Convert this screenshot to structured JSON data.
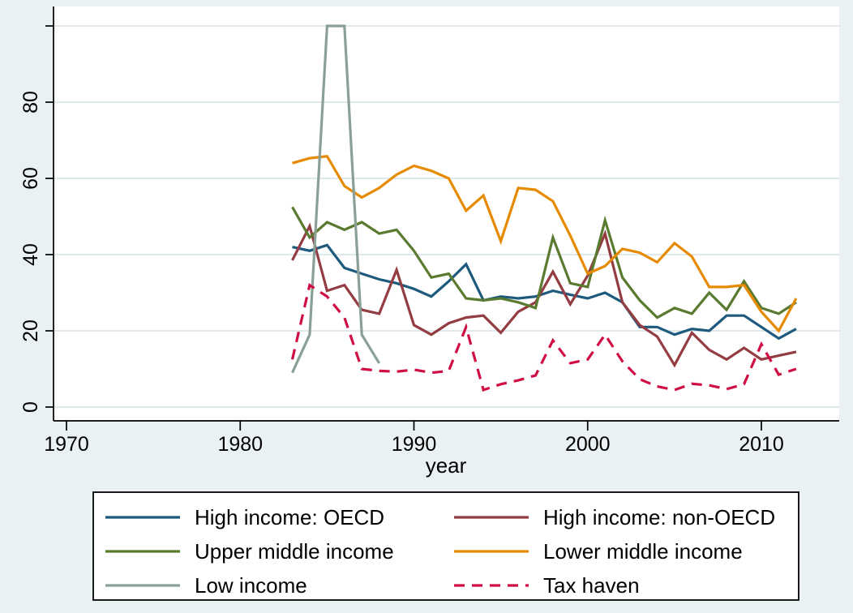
{
  "colors": {
    "background": "#e9f1f2",
    "plot_bg": "#ffffff",
    "gridline": "#dde9eb",
    "axis": "#000000",
    "text": "#000000",
    "legend_border": "#000000",
    "legend_bg": "#ffffff"
  },
  "chart_data": {
    "type": "line",
    "title": "",
    "xlabel": "year",
    "ylabel": "",
    "grid": true,
    "legend_position": "bottom",
    "xlim": [
      1969.3,
      2014.5
    ],
    "ylim": [
      0,
      100
    ],
    "x_ticks": [
      1970,
      1980,
      1990,
      2000,
      2010
    ],
    "y_ticks": [
      0,
      20,
      40,
      60,
      80
    ],
    "y_unlabeled_tick": 100,
    "x": [
      1983,
      1984,
      1985,
      1986,
      1987,
      1988,
      1989,
      1990,
      1991,
      1992,
      1993,
      1994,
      1995,
      1996,
      1997,
      1998,
      1999,
      2000,
      2001,
      2002,
      2003,
      2004,
      2005,
      2006,
      2007,
      2008,
      2009,
      2010,
      2011,
      2012
    ],
    "series": [
      {
        "name": "High income: OECD",
        "color": "#1e5a7d",
        "dash": null,
        "values": [
          42,
          41,
          42.5,
          36.5,
          35,
          33.5,
          32.5,
          31,
          29,
          33,
          37.5,
          28,
          29,
          28.5,
          29,
          30.5,
          29.5,
          28.5,
          30,
          27.5,
          21,
          21,
          19,
          20.5,
          20,
          24,
          24,
          21,
          18,
          20.5
        ]
      },
      {
        "name": "High income: non-OECD",
        "color": "#933c42",
        "dash": null,
        "values": [
          38.5,
          47.5,
          30.5,
          32,
          25.5,
          24.5,
          36,
          21.5,
          19,
          22,
          23.5,
          24,
          19.5,
          25,
          27.5,
          35.5,
          27,
          34.5,
          45.5,
          27.5,
          21.5,
          18.5,
          11,
          19.5,
          15,
          12.5,
          15.5,
          12.5,
          13.5,
          14.5
        ]
      },
      {
        "name": "Upper middle income",
        "color": "#5a7a30",
        "dash": null,
        "values": [
          52.5,
          44.5,
          48.5,
          46.5,
          48.5,
          45.5,
          46.5,
          41,
          34,
          35,
          28.5,
          28,
          28.5,
          27.5,
          26,
          44.5,
          32.5,
          31.5,
          49,
          34,
          28,
          23.5,
          26,
          24.5,
          30,
          25.5,
          33,
          26,
          24.5,
          27.5
        ]
      },
      {
        "name": "Lower middle income",
        "color": "#e68a00",
        "dash": null,
        "values": [
          64,
          65.3,
          65.8,
          58,
          55,
          57.5,
          61,
          63.3,
          62,
          60,
          51.5,
          55.5,
          43.5,
          57.5,
          57,
          54,
          45,
          35,
          37,
          41.5,
          40.5,
          38,
          43,
          39.5,
          31.5,
          31.5,
          32,
          25,
          20,
          28.5
        ]
      },
      {
        "name": "Low income",
        "color": "#8aa096",
        "dash": null,
        "values": [
          9,
          19,
          100,
          100,
          19,
          11.5,
          null,
          null,
          null,
          null,
          null,
          null,
          null,
          null,
          null,
          null,
          null,
          null,
          null,
          null,
          null,
          null,
          null,
          null,
          null,
          null,
          null,
          null,
          null,
          null
        ]
      },
      {
        "name": "Tax haven",
        "color": "#cf0f44",
        "dash": [
          13,
          9
        ],
        "values": [
          12.5,
          32,
          29,
          23.5,
          10,
          9.5,
          9.3,
          9.8,
          9,
          9.5,
          21,
          4.5,
          6,
          7,
          8.3,
          17.5,
          11.5,
          12.5,
          19,
          12,
          7.3,
          5.4,
          4.5,
          6.1,
          5.7,
          4.7,
          6,
          16.5,
          8.5,
          10
        ]
      }
    ],
    "legend": {
      "columns": 2,
      "row_order": [
        0,
        1,
        2,
        3,
        4,
        5
      ]
    }
  }
}
